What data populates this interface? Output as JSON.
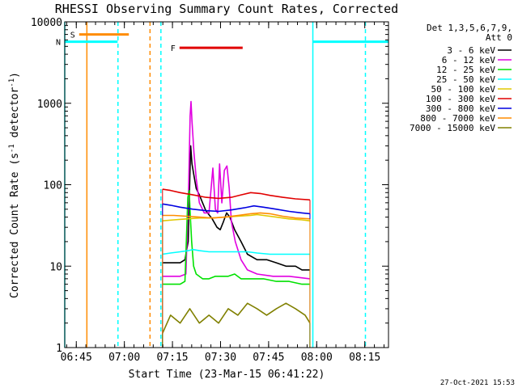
{
  "chart_data": {
    "type": "line",
    "title": "RHESSI Observing Summary Count Rates, Corrected",
    "xlabel": "Start Time (23-Mar-15 06:41:22)",
    "ylabel": "Corrected Count Rate (s⁻¹ detector⁻¹)",
    "ylabel_parts": {
      "main": "Corrected Count Rate (s",
      "exp1": "-1",
      "mid": " detector",
      "exp2": "-1",
      "end": ")"
    },
    "x_unit": "minutes since 06:41:22",
    "xlim": [
      0,
      101
    ],
    "ylim": [
      1,
      10000
    ],
    "y_scale": "log",
    "x_ticks": [
      {
        "label": "06:45",
        "value": 3.6
      },
      {
        "label": "07:00",
        "value": 18.6
      },
      {
        "label": "07:15",
        "value": 33.6
      },
      {
        "label": "07:30",
        "value": 48.6
      },
      {
        "label": "07:45",
        "value": 63.6
      },
      {
        "label": "08:00",
        "value": 78.6
      },
      {
        "label": "08:15",
        "value": 93.6
      }
    ],
    "y_ticks": [
      {
        "label": "1",
        "value": 1
      },
      {
        "label": "10",
        "value": 10
      },
      {
        "label": "100",
        "value": 100
      },
      {
        "label": "1000",
        "value": 1000
      },
      {
        "label": "10000",
        "value": 10000
      }
    ],
    "legend": {
      "placement": "right",
      "header": [
        "Det 1,3,5,6,7,9,",
        "Att 0"
      ],
      "entries": [
        {
          "label": "3 - 6 keV",
          "color": "#000000"
        },
        {
          "label": "6 - 12 keV",
          "color": "#e100e1"
        },
        {
          "label": "12 - 25 keV",
          "color": "#00e100"
        },
        {
          "label": "25 - 50 keV",
          "color": "#00ffff"
        },
        {
          "label": "50 - 100 keV",
          "color": "#e1c800"
        },
        {
          "label": "100 - 300 keV",
          "color": "#e10000"
        },
        {
          "label": "300 - 800 keV",
          "color": "#0000e1"
        },
        {
          "label": "800 - 7000 keV",
          "color": "#ff8c00"
        },
        {
          "label": "7000 - 15000 keV",
          "color": "#808000"
        }
      ]
    },
    "flags": [
      {
        "label": "S",
        "color": "#ff8c00",
        "start": 4.5,
        "end": 20.0,
        "value": 7000
      },
      {
        "label": "N",
        "color": "#00ffff",
        "start": 0,
        "end": 16.5,
        "value": 5700
      },
      {
        "label": "F",
        "color": "#e10000",
        "start": 35.8,
        "end": 55.5,
        "value": 4800
      },
      {
        "label": "",
        "color": "#00ffff",
        "start": 77.3,
        "end": 101,
        "value": 5700
      }
    ],
    "markers": [
      {
        "color": "#00ffff",
        "x": 0,
        "style": "solid"
      },
      {
        "color": "#ff8c00",
        "x": 6.9,
        "style": "solid"
      },
      {
        "color": "#00ffff",
        "x": 16.6,
        "style": "dashed"
      },
      {
        "color": "#ff8c00",
        "x": 26.6,
        "style": "dashed"
      },
      {
        "color": "#00ffff",
        "x": 30.0,
        "style": "dashed"
      },
      {
        "color": "#00ffff",
        "x": 77.4,
        "style": "solid"
      },
      {
        "color": "#00ffff",
        "x": 93.8,
        "style": "dashed"
      }
    ],
    "data_window": [
      30.5,
      76.5
    ],
    "series": [
      {
        "name": "3 - 6 keV",
        "color": "#000000",
        "x": [
          30.5,
          32,
          34,
          36,
          37.5,
          38.5,
          39,
          39.3,
          39.7,
          40.3,
          41,
          42,
          43,
          44,
          46,
          47.5,
          48.5,
          49.5,
          50.5,
          51.5,
          53,
          55,
          57,
          60,
          63,
          66,
          69,
          72,
          74,
          76.5
        ],
        "y": [
          11,
          11,
          11,
          11,
          12,
          20,
          120,
          300,
          180,
          130,
          90,
          75,
          60,
          48,
          38,
          30,
          28,
          35,
          45,
          40,
          28,
          20,
          14,
          12,
          12,
          11,
          10,
          10,
          9,
          9
        ]
      },
      {
        "name": "6 - 12 keV",
        "color": "#e100e1",
        "x": [
          30.5,
          33,
          36,
          37.8,
          38.6,
          39.1,
          39.4,
          39.7,
          40.3,
          41,
          42,
          43.5,
          45,
          46.2,
          47,
          47.7,
          48.3,
          49,
          49.8,
          50.6,
          51.3,
          52,
          53.2,
          55,
          57,
          60,
          65,
          70,
          76.5
        ],
        "y": [
          7.5,
          7.5,
          7.5,
          8,
          80,
          700,
          1050,
          600,
          250,
          120,
          60,
          45,
          45,
          160,
          50,
          45,
          180,
          60,
          150,
          170,
          90,
          35,
          20,
          12,
          9,
          8,
          7.5,
          7.5,
          7
        ]
      },
      {
        "name": "12 - 25 keV",
        "color": "#00e100",
        "x": [
          30.5,
          33,
          36,
          37.5,
          38.4,
          38.8,
          39.2,
          39.6,
          40.2,
          41,
          43,
          45,
          47,
          49,
          51,
          53,
          55,
          58,
          62,
          66,
          70,
          74,
          76.5
        ],
        "y": [
          6,
          6,
          6,
          6.5,
          70,
          85,
          40,
          20,
          10,
          8,
          7,
          7,
          7.5,
          7.5,
          7.5,
          8,
          7,
          7,
          7,
          6.5,
          6.5,
          6,
          6
        ]
      },
      {
        "name": "25 - 50 keV",
        "color": "#00ffff",
        "x": [
          30.5,
          33,
          36,
          38.5,
          40,
          42,
          45,
          48,
          51,
          54,
          57,
          60,
          64,
          68,
          72,
          76.5
        ],
        "y": [
          14,
          14.5,
          15,
          15.5,
          16,
          15.5,
          15,
          15,
          15,
          15,
          15,
          14.5,
          14,
          14,
          14,
          14
        ]
      },
      {
        "name": "50 - 100 keV",
        "color": "#e1c800",
        "x": [
          30.5,
          34,
          38,
          42,
          46,
          50,
          54,
          58,
          60,
          62,
          66,
          70,
          74,
          76.5
        ],
        "y": [
          36,
          37,
          38,
          39,
          39,
          40,
          41,
          42,
          43,
          42,
          40,
          38,
          37,
          36
        ]
      },
      {
        "name": "100 - 300 keV",
        "color": "#e10000",
        "x": [
          30.5,
          33,
          36,
          40,
          44,
          48,
          52,
          55,
          58,
          61,
          64,
          68,
          72,
          76.5
        ],
        "y": [
          88,
          85,
          80,
          75,
          70,
          68,
          70,
          75,
          80,
          78,
          74,
          70,
          67,
          65
        ]
      },
      {
        "name": "300 - 800 keV",
        "color": "#0000e1",
        "x": [
          30.5,
          33,
          36,
          40,
          44,
          48,
          52,
          56,
          59,
          62,
          66,
          70,
          74,
          76.5
        ],
        "y": [
          58,
          56,
          53,
          50,
          48,
          47,
          49,
          52,
          55,
          53,
          50,
          47,
          45,
          44
        ]
      },
      {
        "name": "800 - 7000 keV",
        "color": "#ff8c00",
        "x": [
          30.5,
          34,
          38,
          42,
          46,
          50,
          54,
          58,
          61,
          64,
          68,
          72,
          76.5
        ],
        "y": [
          42,
          42,
          41,
          40,
          39,
          40,
          42,
          44,
          45,
          44,
          41,
          39,
          38
        ]
      },
      {
        "name": "7000 - 15000 keV",
        "color": "#808000",
        "x": [
          30.5,
          33,
          36,
          39,
          42,
          45,
          48,
          51,
          54,
          57,
          60,
          63,
          66,
          69,
          72,
          75,
          76.5
        ],
        "y": [
          1.5,
          2.5,
          2,
          3,
          2,
          2.5,
          2,
          3,
          2.5,
          3.5,
          3,
          2.5,
          3,
          3.5,
          3,
          2.5,
          2
        ]
      }
    ]
  },
  "footer_date": "27-Oct-2021 15:53"
}
